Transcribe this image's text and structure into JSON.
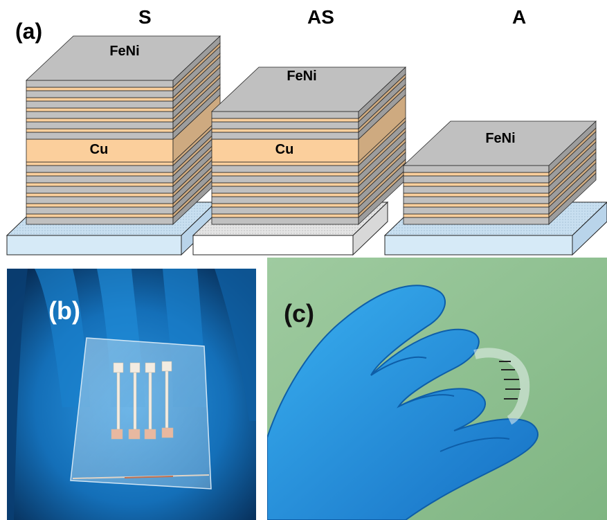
{
  "panel_a": {
    "label": "(a)",
    "stacks": [
      {
        "title": "S",
        "top_layer": "FeNi",
        "spacer": "Cu"
      },
      {
        "title": "AS",
        "top_layer": "FeNi",
        "spacer": "Cu"
      },
      {
        "title": "A",
        "top_layer": "FeNi"
      }
    ]
  },
  "panel_b": {
    "label": "(b)"
  },
  "panel_c": {
    "label": "(c)"
  },
  "colors": {
    "feni": "#c0c0c0",
    "cu": "#fbcf9c",
    "substrate_blue": "#d6eaf7",
    "glove": "#1e88d8",
    "background_c": "#8fc090"
  }
}
